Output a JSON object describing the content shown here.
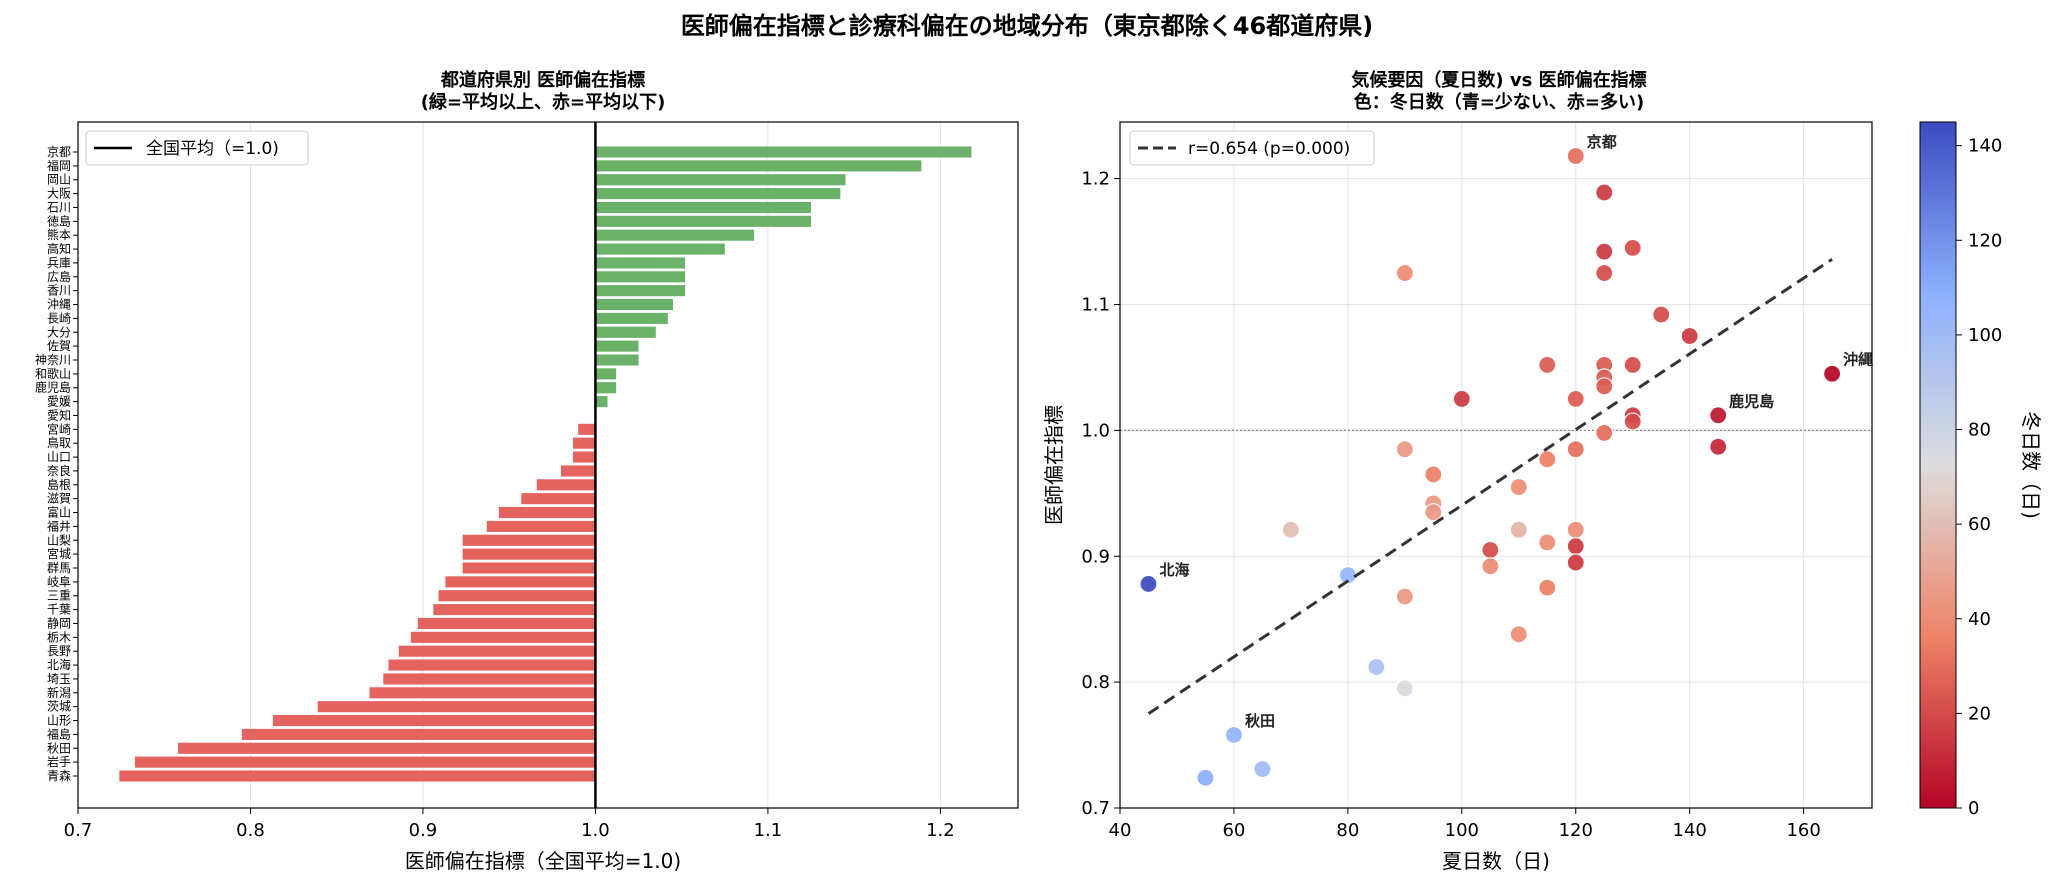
{
  "figure": {
    "suptitle": "医師偏在指標と診療科偏在の地域分布（東京都除く46都道府県)"
  },
  "chart_data": [
    {
      "type": "bar",
      "orientation": "horizontal",
      "title": "都道府県別 医師偏在指標\n(緑=平均以上、赤=平均以下)",
      "xlabel": "医師偏在指標（全国平均=1.0)",
      "ylabel": "",
      "xlim": [
        0.7,
        1.245
      ],
      "xticks": [
        0.7,
        0.8,
        0.9,
        1.0,
        1.1,
        1.2
      ],
      "reference_line": {
        "x": 1.0,
        "label": "全国平均（=1.0)"
      },
      "grid": "x",
      "legend_position": "top-left",
      "colors": {
        "above": "#6ab26a",
        "below": "#e5635f",
        "reference": "#000000"
      },
      "categories": [
        "京都",
        "福岡",
        "岡山",
        "大阪",
        "石川",
        "徳島",
        "熊本",
        "高知",
        "兵庫",
        "広島",
        "香川",
        "沖縄",
        "長崎",
        "大分",
        "佐賀",
        "神奈川",
        "和歌山",
        "鹿児島",
        "愛媛",
        "愛知",
        "宮崎",
        "鳥取",
        "山口",
        "奈良",
        "島根",
        "滋賀",
        "富山",
        "福井",
        "山梨",
        "宮城",
        "群馬",
        "岐阜",
        "三重",
        "千葉",
        "静岡",
        "栃木",
        "長野",
        "北海",
        "埼玉",
        "新潟",
        "茨城",
        "山形",
        "福島",
        "秋田",
        "岩手",
        "青森"
      ],
      "values": [
        1.218,
        1.189,
        1.145,
        1.142,
        1.125,
        1.125,
        1.092,
        1.075,
        1.052,
        1.052,
        1.052,
        1.045,
        1.042,
        1.035,
        1.025,
        1.025,
        1.012,
        1.012,
        1.007,
        1.0,
        0.99,
        0.987,
        0.987,
        0.98,
        0.966,
        0.957,
        0.944,
        0.937,
        0.923,
        0.923,
        0.923,
        0.913,
        0.909,
        0.906,
        0.897,
        0.893,
        0.886,
        0.88,
        0.877,
        0.869,
        0.839,
        0.813,
        0.795,
        0.758,
        0.733,
        0.724
      ]
    },
    {
      "type": "scatter",
      "title": "気候要因（夏日数) vs 医師偏在指標\n色：冬日数（青=少ない、赤=多い)",
      "xlabel": "夏日数（日)",
      "ylabel": "医師偏在指標",
      "xlim": [
        40,
        172
      ],
      "ylim": [
        0.7,
        1.245
      ],
      "xticks": [
        40,
        60,
        80,
        100,
        120,
        140,
        160
      ],
      "yticks": [
        0.7,
        0.8,
        0.9,
        1.0,
        1.1,
        1.2
      ],
      "grid": true,
      "reference_line": {
        "y": 1.0
      },
      "legend_position": "top-left",
      "trendline": {
        "label": "r=0.654 (p=0.000)",
        "x": [
          45,
          165
        ],
        "y": [
          0.775,
          1.136
        ]
      },
      "colorbar": {
        "label": "冬日数（日)",
        "min": 0,
        "max": 145,
        "ticks": [
          0,
          20,
          40,
          60,
          80,
          100,
          120,
          140
        ],
        "low_color": "#b40426",
        "high_color": "#3b4cc0"
      },
      "points": [
        {
          "x": 120,
          "y": 1.218,
          "c": 30,
          "label": "京都"
        },
        {
          "x": 125,
          "y": 1.189,
          "c": 15
        },
        {
          "x": 130,
          "y": 1.145,
          "c": 20
        },
        {
          "x": 125,
          "y": 1.142,
          "c": 15
        },
        {
          "x": 125,
          "y": 1.125,
          "c": 20
        },
        {
          "x": 90,
          "y": 1.125,
          "c": 40
        },
        {
          "x": 135,
          "y": 1.092,
          "c": 20
        },
        {
          "x": 140,
          "y": 1.075,
          "c": 15
        },
        {
          "x": 165,
          "y": 1.045,
          "c": 0,
          "label": "沖縄"
        },
        {
          "x": 115,
          "y": 1.052,
          "c": 25
        },
        {
          "x": 125,
          "y": 1.052,
          "c": 25
        },
        {
          "x": 130,
          "y": 1.052,
          "c": 20
        },
        {
          "x": 125,
          "y": 1.042,
          "c": 25
        },
        {
          "x": 125,
          "y": 1.035,
          "c": 25
        },
        {
          "x": 100,
          "y": 1.025,
          "c": 15
        },
        {
          "x": 120,
          "y": 1.025,
          "c": 25
        },
        {
          "x": 130,
          "y": 1.012,
          "c": 15
        },
        {
          "x": 130,
          "y": 1.007,
          "c": 20
        },
        {
          "x": 145,
          "y": 1.012,
          "c": 5,
          "label": "鹿児島"
        },
        {
          "x": 125,
          "y": 0.998,
          "c": 30
        },
        {
          "x": 145,
          "y": 0.987,
          "c": 10
        },
        {
          "x": 120,
          "y": 0.985,
          "c": 30
        },
        {
          "x": 90,
          "y": 0.985,
          "c": 45
        },
        {
          "x": 115,
          "y": 0.977,
          "c": 35
        },
        {
          "x": 95,
          "y": 0.965,
          "c": 35
        },
        {
          "x": 110,
          "y": 0.955,
          "c": 40
        },
        {
          "x": 95,
          "y": 0.942,
          "c": 45
        },
        {
          "x": 95,
          "y": 0.935,
          "c": 45
        },
        {
          "x": 70,
          "y": 0.921,
          "c": 60
        },
        {
          "x": 110,
          "y": 0.921,
          "c": 55
        },
        {
          "x": 120,
          "y": 0.921,
          "c": 40
        },
        {
          "x": 115,
          "y": 0.911,
          "c": 40
        },
        {
          "x": 105,
          "y": 0.905,
          "c": 20
        },
        {
          "x": 120,
          "y": 0.908,
          "c": 15
        },
        {
          "x": 120,
          "y": 0.895,
          "c": 15
        },
        {
          "x": 105,
          "y": 0.892,
          "c": 40
        },
        {
          "x": 45,
          "y": 0.878,
          "c": 145,
          "label": "北海"
        },
        {
          "x": 115,
          "y": 0.875,
          "c": 35
        },
        {
          "x": 90,
          "y": 0.868,
          "c": 45
        },
        {
          "x": 80,
          "y": 0.885,
          "c": 105
        },
        {
          "x": 110,
          "y": 0.838,
          "c": 40
        },
        {
          "x": 85,
          "y": 0.812,
          "c": 95
        },
        {
          "x": 90,
          "y": 0.795,
          "c": 75
        },
        {
          "x": 60,
          "y": 0.758,
          "c": 105,
          "label": "秋田"
        },
        {
          "x": 65,
          "y": 0.731,
          "c": 100
        },
        {
          "x": 55,
          "y": 0.724,
          "c": 110
        }
      ]
    }
  ]
}
